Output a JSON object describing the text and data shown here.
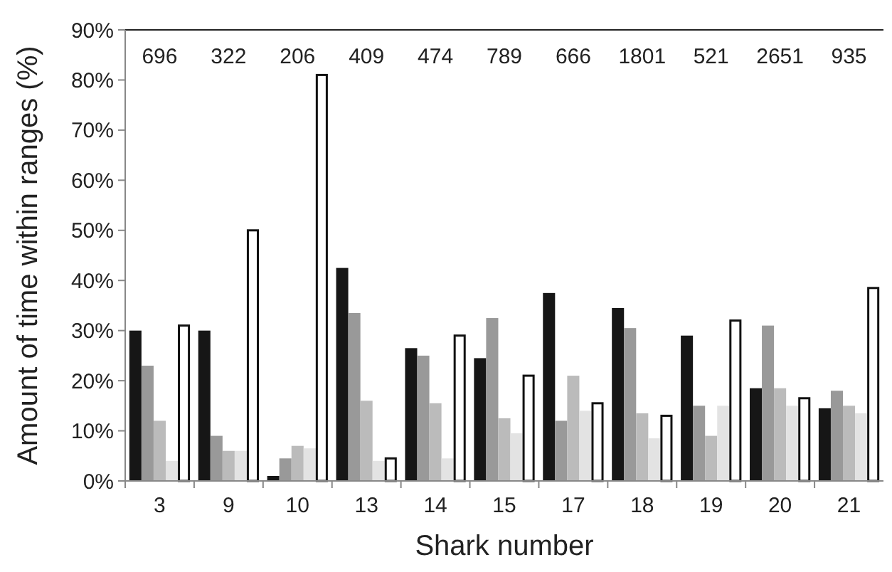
{
  "chart_data": {
    "type": "bar",
    "xlabel": "Shark number",
    "ylabel": "Amount of time within ranges (%)",
    "categories": [
      "3",
      "9",
      "10",
      "13",
      "14",
      "15",
      "17",
      "18",
      "19",
      "20",
      "21"
    ],
    "series": [
      {
        "color": "#161616",
        "values": [
          30,
          30,
          1,
          42.5,
          26.5,
          24.5,
          37.5,
          34.5,
          29,
          18.5,
          14.5
        ]
      },
      {
        "color": "#999999",
        "values": [
          23,
          9,
          4.5,
          33.5,
          25,
          32.5,
          12,
          30.5,
          15,
          31,
          18
        ]
      },
      {
        "color": "#bbbbbb",
        "values": [
          12,
          6,
          7,
          16,
          15.5,
          12.5,
          21,
          13.5,
          9,
          18.5,
          15
        ]
      },
      {
        "color": "#e3e3e3",
        "values": [
          4,
          6,
          6.5,
          4,
          4.5,
          9.5,
          14,
          8.5,
          15,
          15,
          13.5
        ]
      },
      {
        "color": "#ffffff",
        "values": [
          31,
          50,
          81,
          4.5,
          29,
          21,
          15.5,
          13,
          32,
          16.5,
          38.5
        ]
      }
    ],
    "ylim": [
      0,
      90
    ],
    "yticks": [
      {
        "value": 0,
        "label": "0%"
      },
      {
        "value": 10,
        "label": "10%"
      },
      {
        "value": 20,
        "label": "20%"
      },
      {
        "value": 30,
        "label": "30%"
      },
      {
        "value": 40,
        "label": "40%"
      },
      {
        "value": 50,
        "label": "50%"
      },
      {
        "value": 60,
        "label": "60%"
      },
      {
        "value": 70,
        "label": "70%"
      },
      {
        "value": 80,
        "label": "80%"
      },
      {
        "value": 90,
        "label": "90%"
      }
    ],
    "annotations": [
      "696",
      "322",
      "206",
      "409",
      "474",
      "789",
      "666",
      "1801",
      "521",
      "2651",
      "935"
    ]
  }
}
